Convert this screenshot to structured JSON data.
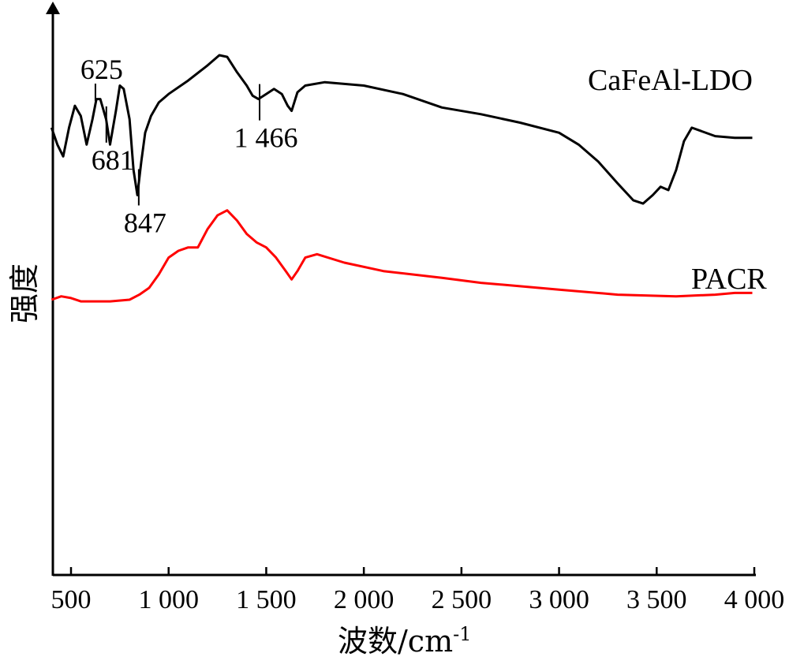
{
  "chart_data": {
    "type": "line",
    "title": "",
    "xlabel": "波数/cm",
    "xlabel_sup": "-1",
    "ylabel": "强度",
    "xlim": [
      400,
      4000
    ],
    "ylim": [
      -1.8,
      0.55
    ],
    "grid": false,
    "x_ticks": [
      500,
      1000,
      1500,
      2000,
      2500,
      3000,
      3500,
      4000
    ],
    "x_tick_labels": [
      "500",
      "1 000",
      "1 500",
      "2 000",
      "2 500",
      "3 000",
      "3 500",
      "4 000"
    ],
    "series": [
      {
        "name": "CaFeAl-LDO",
        "color": "#000000",
        "points": [
          [
            400,
            0.05
          ],
          [
            430,
            -0.05
          ],
          [
            460,
            -0.12
          ],
          [
            490,
            0.05
          ],
          [
            520,
            0.18
          ],
          [
            550,
            0.12
          ],
          [
            580,
            -0.05
          ],
          [
            610,
            0.1
          ],
          [
            630,
            0.22
          ],
          [
            650,
            0.22
          ],
          [
            680,
            0.1
          ],
          [
            700,
            -0.05
          ],
          [
            730,
            0.15
          ],
          [
            750,
            0.3
          ],
          [
            770,
            0.28
          ],
          [
            800,
            0.1
          ],
          [
            820,
            -0.2
          ],
          [
            840,
            -0.35
          ],
          [
            860,
            -0.15
          ],
          [
            880,
            0.02
          ],
          [
            910,
            0.12
          ],
          [
            950,
            0.2
          ],
          [
            1000,
            0.25
          ],
          [
            1100,
            0.33
          ],
          [
            1200,
            0.42
          ],
          [
            1260,
            0.48
          ],
          [
            1300,
            0.47
          ],
          [
            1350,
            0.38
          ],
          [
            1400,
            0.3
          ],
          [
            1430,
            0.24
          ],
          [
            1460,
            0.22
          ],
          [
            1500,
            0.25
          ],
          [
            1540,
            0.28
          ],
          [
            1580,
            0.25
          ],
          [
            1610,
            0.18
          ],
          [
            1630,
            0.15
          ],
          [
            1660,
            0.26
          ],
          [
            1700,
            0.3
          ],
          [
            1800,
            0.32
          ],
          [
            2000,
            0.3
          ],
          [
            2200,
            0.25
          ],
          [
            2400,
            0.17
          ],
          [
            2600,
            0.13
          ],
          [
            2800,
            0.08
          ],
          [
            3000,
            0.02
          ],
          [
            3100,
            -0.05
          ],
          [
            3200,
            -0.15
          ],
          [
            3300,
            -0.28
          ],
          [
            3380,
            -0.38
          ],
          [
            3430,
            -0.4
          ],
          [
            3480,
            -0.35
          ],
          [
            3520,
            -0.3
          ],
          [
            3560,
            -0.32
          ],
          [
            3600,
            -0.2
          ],
          [
            3640,
            -0.03
          ],
          [
            3680,
            0.05
          ],
          [
            3800,
            0.0
          ],
          [
            3900,
            -0.01
          ],
          [
            3990,
            -0.01
          ]
        ]
      },
      {
        "name": "PACR",
        "color": "#ff0000",
        "points": [
          [
            400,
            -0.97
          ],
          [
            450,
            -0.95
          ],
          [
            500,
            -0.96
          ],
          [
            550,
            -0.98
          ],
          [
            600,
            -0.98
          ],
          [
            700,
            -0.98
          ],
          [
            800,
            -0.97
          ],
          [
            850,
            -0.94
          ],
          [
            900,
            -0.9
          ],
          [
            950,
            -0.82
          ],
          [
            1000,
            -0.72
          ],
          [
            1050,
            -0.68
          ],
          [
            1100,
            -0.66
          ],
          [
            1150,
            -0.66
          ],
          [
            1200,
            -0.55
          ],
          [
            1250,
            -0.47
          ],
          [
            1300,
            -0.44
          ],
          [
            1350,
            -0.5
          ],
          [
            1400,
            -0.58
          ],
          [
            1450,
            -0.63
          ],
          [
            1500,
            -0.66
          ],
          [
            1550,
            -0.72
          ],
          [
            1600,
            -0.8
          ],
          [
            1630,
            -0.85
          ],
          [
            1660,
            -0.8
          ],
          [
            1700,
            -0.72
          ],
          [
            1760,
            -0.7
          ],
          [
            1900,
            -0.75
          ],
          [
            2100,
            -0.8
          ],
          [
            2400,
            -0.84
          ],
          [
            2600,
            -0.87
          ],
          [
            2800,
            -0.89
          ],
          [
            3000,
            -0.91
          ],
          [
            3300,
            -0.94
          ],
          [
            3600,
            -0.95
          ],
          [
            3800,
            -0.94
          ],
          [
            3900,
            -0.93
          ],
          [
            3990,
            -0.93
          ]
        ]
      }
    ],
    "annotations": [
      {
        "text": "625",
        "x": 625,
        "pos": "above"
      },
      {
        "text": "681",
        "x": 681,
        "pos": "below"
      },
      {
        "text": "847",
        "x": 847,
        "pos": "below"
      },
      {
        "text": "1 466",
        "x": 1466,
        "pos": "below"
      }
    ]
  }
}
